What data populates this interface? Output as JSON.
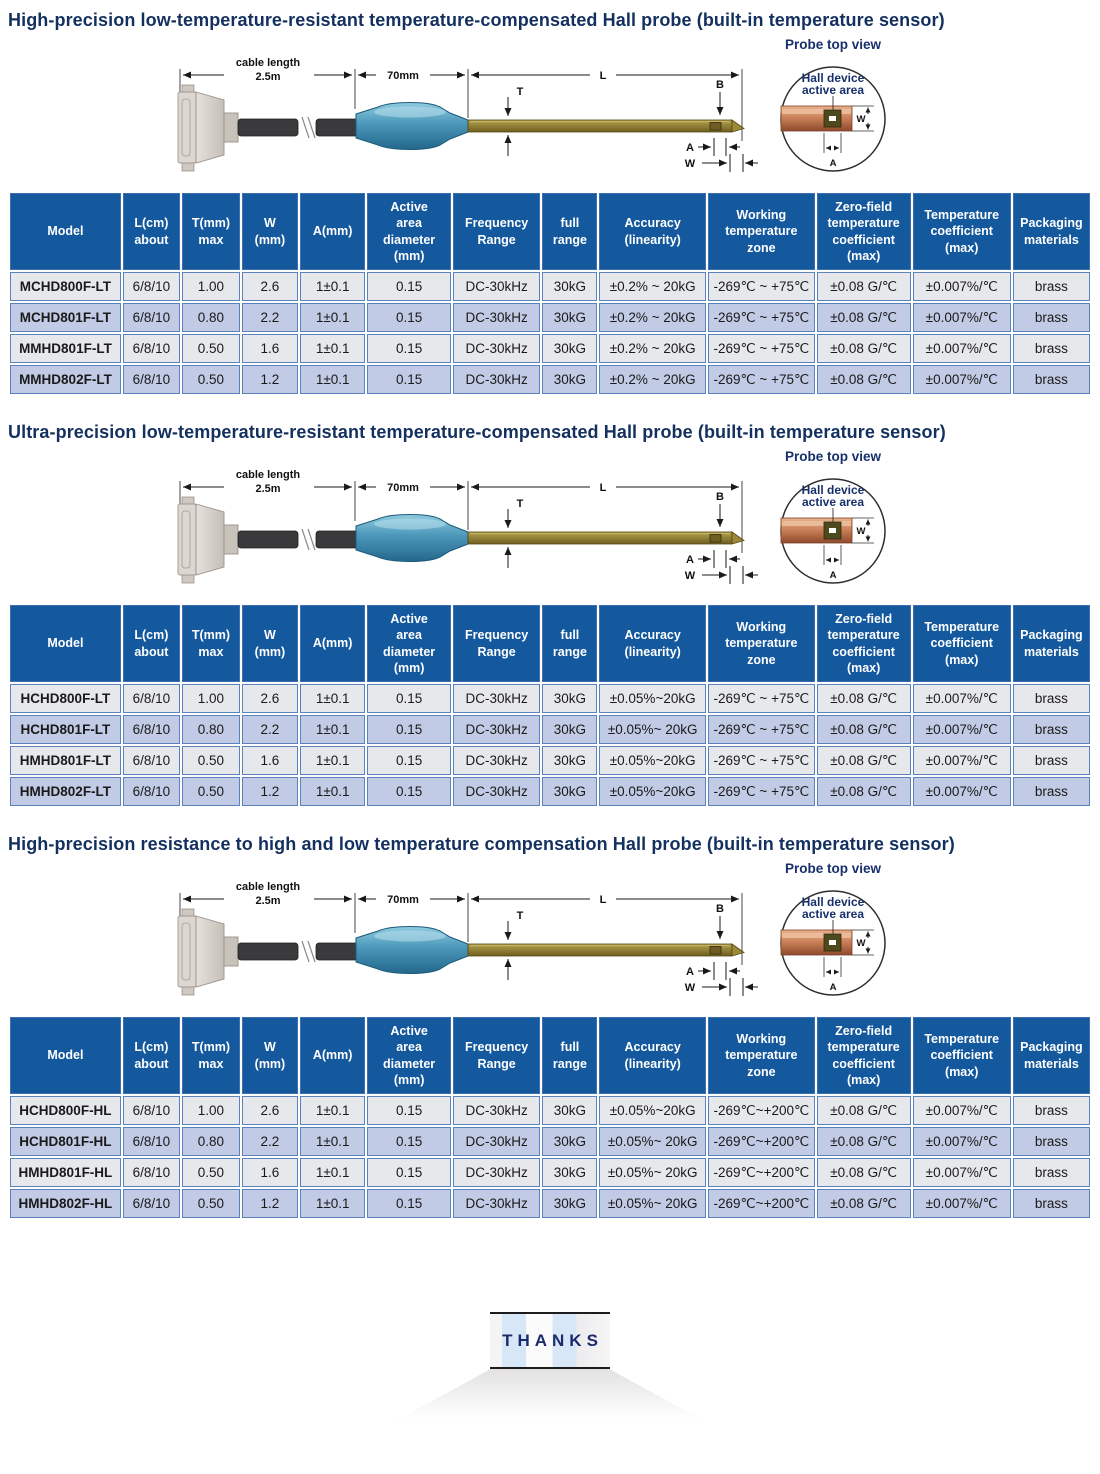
{
  "page": {
    "background": "#ffffff",
    "title_color": "#13305f",
    "table": {
      "header_bg": "#14589e",
      "header_text": "#ffffff",
      "row_odd_bg": "#e7e8ec",
      "row_even_bg": "#c2cbe5",
      "border_color": "#5b82bd"
    },
    "diagram_colors": {
      "handle_teal": "#4b97ba",
      "blade_brass": "#8a7a2e",
      "rod_copper": "#c87e56",
      "label_navy": "#17306b"
    }
  },
  "columns": [
    "Model",
    "L(cm)\nabout",
    "T(mm)\nmax",
    "W\n(mm)",
    "A(mm)",
    "Active\narea\ndiameter\n(mm)",
    "Frequency\nRange",
    "full\nrange",
    "Accuracy\n(linearity)",
    "Working\ntemperature\nzone",
    "Zero-field\ntemperature\ncoefficient\n(max)",
    "Temperature\ncoefficient\n(max)",
    "Packaging\nmaterials"
  ],
  "sections": [
    {
      "title": "High-precision low-temperature-resistant temperature-compensated Hall probe (built-in temperature sensor)",
      "rows": [
        [
          "MCHD800F-LT",
          "6/8/10",
          "1.00",
          "2.6",
          "1±0.1",
          "0.15",
          "DC-30kHz",
          "30kG",
          "±0.2% ~ 20kG",
          "-269℃ ~ +75℃",
          "±0.08 G/℃",
          "±0.007%/℃",
          "brass"
        ],
        [
          "MCHD801F-LT",
          "6/8/10",
          "0.80",
          "2.2",
          "1±0.1",
          "0.15",
          "DC-30kHz",
          "30kG",
          "±0.2% ~ 20kG",
          "-269℃ ~ +75℃",
          "±0.08 G/℃",
          "±0.007%/℃",
          "brass"
        ],
        [
          "MMHD801F-LT",
          "6/8/10",
          "0.50",
          "1.6",
          "1±0.1",
          "0.15",
          "DC-30kHz",
          "30kG",
          "±0.2% ~ 20kG",
          "-269℃ ~ +75℃",
          "±0.08 G/℃",
          "±0.007%/℃",
          "brass"
        ],
        [
          "MMHD802F-LT",
          "6/8/10",
          "0.50",
          "1.2",
          "1±0.1",
          "0.15",
          "DC-30kHz",
          "30kG",
          "±0.2% ~ 20kG",
          "-269℃ ~ +75℃",
          "±0.08 G/℃",
          "±0.007%/℃",
          "brass"
        ]
      ]
    },
    {
      "title": "Ultra-precision low-temperature-resistant temperature-compensated Hall probe (built-in temperature sensor)",
      "rows": [
        [
          "HCHD800F-LT",
          "6/8/10",
          "1.00",
          "2.6",
          "1±0.1",
          "0.15",
          "DC-30kHz",
          "30kG",
          "±0.05%~20kG",
          "-269℃ ~ +75℃",
          "±0.08 G/℃",
          "±0.007%/℃",
          "brass"
        ],
        [
          "HCHD801F-LT",
          "6/8/10",
          "0.80",
          "2.2",
          "1±0.1",
          "0.15",
          "DC-30kHz",
          "30kG",
          "±0.05%~ 20kG",
          "-269℃ ~ +75℃",
          "±0.08 G/℃",
          "±0.007%/℃",
          "brass"
        ],
        [
          "HMHD801F-LT",
          "6/8/10",
          "0.50",
          "1.6",
          "1±0.1",
          "0.15",
          "DC-30kHz",
          "30kG",
          "±0.05%~20kG",
          "-269℃ ~ +75℃",
          "±0.08 G/℃",
          "±0.007%/℃",
          "brass"
        ],
        [
          "HMHD802F-LT",
          "6/8/10",
          "0.50",
          "1.2",
          "1±0.1",
          "0.15",
          "DC-30kHz",
          "30kG",
          "±0.05%~20kG",
          "-269℃ ~ +75℃",
          "±0.08 G/℃",
          "±0.007%/℃",
          "brass"
        ]
      ]
    },
    {
      "title": "High-precision resistance to high and low temperature compensation Hall probe (built-in temperature sensor)",
      "rows": [
        [
          "HCHD800F-HL",
          "6/8/10",
          "1.00",
          "2.6",
          "1±0.1",
          "0.15",
          "DC-30kHz",
          "30kG",
          "±0.05%~20kG",
          "-269℃~+200℃",
          "±0.08 G/℃",
          "±0.007%/℃",
          "brass"
        ],
        [
          "HCHD801F-HL",
          "6/8/10",
          "0.80",
          "2.2",
          "1±0.1",
          "0.15",
          "DC-30kHz",
          "30kG",
          "±0.05%~ 20kG",
          "-269℃~+200℃",
          "±0.08 G/℃",
          "±0.007%/℃",
          "brass"
        ],
        [
          "HMHD801F-HL",
          "6/8/10",
          "0.50",
          "1.6",
          "1±0.1",
          "0.15",
          "DC-30kHz",
          "30kG",
          "±0.05%~ 20kG",
          "-269℃~+200℃",
          "±0.08 G/℃",
          "±0.007%/℃",
          "brass"
        ],
        [
          "HMHD802F-HL",
          "6/8/10",
          "0.50",
          "1.2",
          "1±0.1",
          "0.15",
          "DC-30kHz",
          "30kG",
          "±0.05%~ 20kG",
          "-269℃~+200℃",
          "±0.08 G/℃",
          "±0.007%/℃",
          "brass"
        ]
      ]
    }
  ],
  "diagram": {
    "cable_label_line1": "cable length",
    "cable_label_line2": "2.5m",
    "handle_length": "70mm",
    "dim_L": "L",
    "dim_T": "T",
    "dim_B": "B",
    "dim_A": "A",
    "dim_W": "W",
    "top_view_title": "Probe top view",
    "active_area_line1": "Hall device",
    "active_area_line2": "active area"
  },
  "footer": {
    "thanks": "THANKS"
  }
}
